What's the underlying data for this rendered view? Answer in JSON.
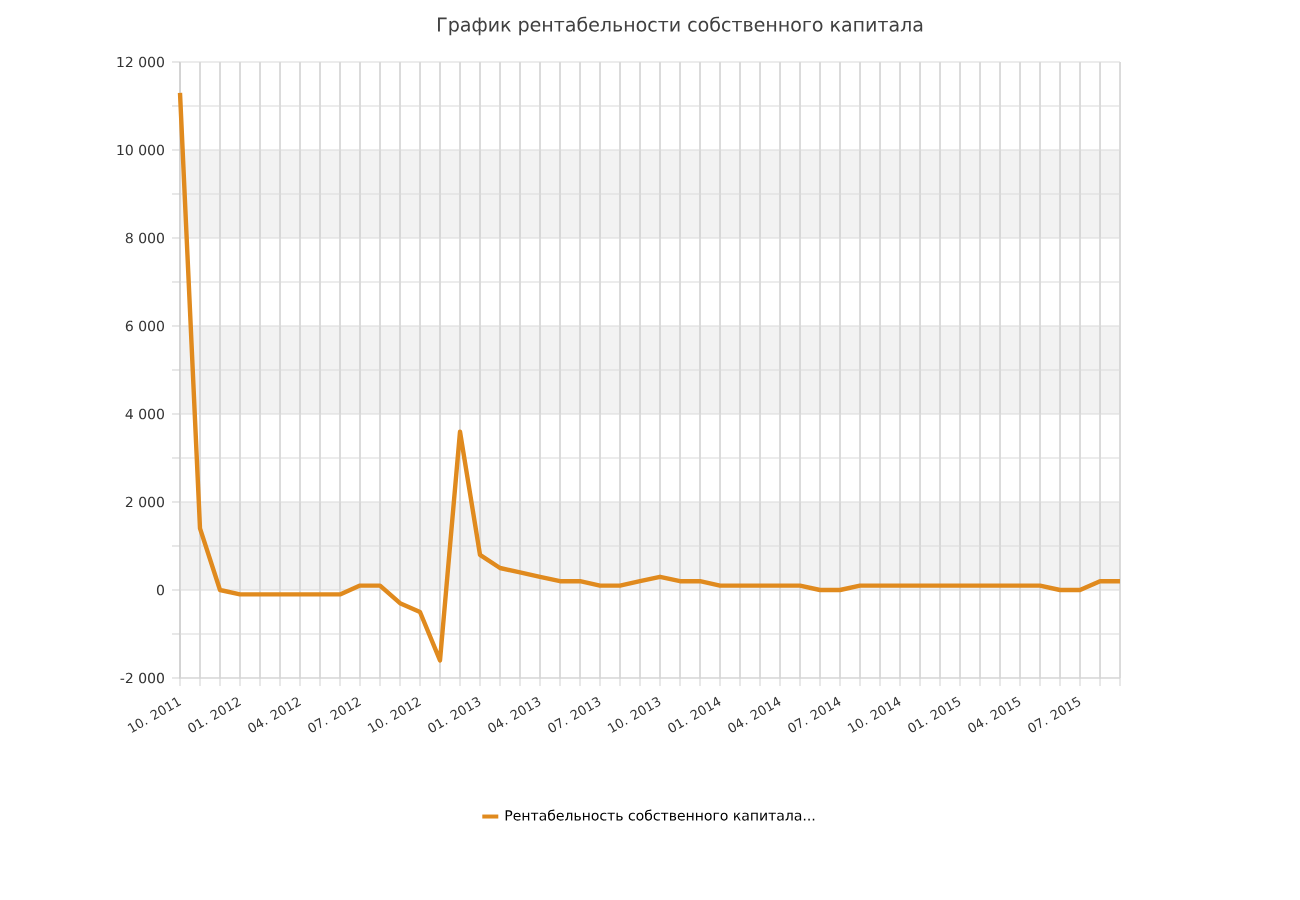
{
  "chart_data": {
    "type": "line",
    "title": "График рентабельности собственного капитала",
    "x": [
      "2011-10",
      "2011-11",
      "2011-12",
      "2012-01",
      "2012-02",
      "2012-03",
      "2012-04",
      "2012-05",
      "2012-06",
      "2012-07",
      "2012-08",
      "2012-09",
      "2012-10",
      "2012-11",
      "2012-12",
      "2013-01",
      "2013-02",
      "2013-03",
      "2013-04",
      "2013-05",
      "2013-06",
      "2013-07",
      "2013-08",
      "2013-09",
      "2013-10",
      "2013-11",
      "2013-12",
      "2014-01",
      "2014-02",
      "2014-03",
      "2014-04",
      "2014-05",
      "2014-06",
      "2014-07",
      "2014-08",
      "2014-09",
      "2014-10",
      "2014-11",
      "2014-12",
      "2015-01",
      "2015-02",
      "2015-03",
      "2015-04",
      "2015-05",
      "2015-06",
      "2015-07",
      "2015-08",
      "2015-09"
    ],
    "series": [
      {
        "name": "Рентабельность собственного капитала...",
        "color": "#e08a1e",
        "values": [
          11300,
          1400,
          0,
          -100,
          -100,
          -100,
          -100,
          -100,
          -100,
          100,
          100,
          -300,
          -500,
          -1600,
          3600,
          800,
          500,
          400,
          300,
          200,
          200,
          100,
          100,
          200,
          300,
          200,
          200,
          100,
          100,
          100,
          100,
          100,
          0,
          0,
          100,
          100,
          100,
          100,
          100,
          100,
          100,
          100,
          100,
          100,
          0,
          0,
          200,
          200
        ]
      }
    ],
    "xlim": [
      "2011-10",
      "2015-09"
    ],
    "xticks": [
      {
        "value": "2011-10",
        "label": "10. 2011"
      },
      {
        "value": "2011-11",
        "label": null
      },
      {
        "value": "2011-12",
        "label": null
      },
      {
        "value": "2012-01",
        "label": "01. 2012"
      },
      {
        "value": "2012-02",
        "label": null
      },
      {
        "value": "2012-03",
        "label": null
      },
      {
        "value": "2012-04",
        "label": "04. 2012"
      },
      {
        "value": "2012-05",
        "label": null
      },
      {
        "value": "2012-06",
        "label": null
      },
      {
        "value": "2012-07",
        "label": "07. 2012"
      },
      {
        "value": "2012-08",
        "label": null
      },
      {
        "value": "2012-09",
        "label": null
      },
      {
        "value": "2012-10",
        "label": "10. 2012"
      },
      {
        "value": "2012-11",
        "label": null
      },
      {
        "value": "2012-12",
        "label": null
      },
      {
        "value": "2013-01",
        "label": "01. 2013"
      },
      {
        "value": "2013-02",
        "label": null
      },
      {
        "value": "2013-03",
        "label": null
      },
      {
        "value": "2013-04",
        "label": "04. 2013"
      },
      {
        "value": "2013-05",
        "label": null
      },
      {
        "value": "2013-06",
        "label": null
      },
      {
        "value": "2013-07",
        "label": "07. 2013"
      },
      {
        "value": "2013-08",
        "label": null
      },
      {
        "value": "2013-09",
        "label": null
      },
      {
        "value": "2013-10",
        "label": "10. 2013"
      },
      {
        "value": "2013-11",
        "label": null
      },
      {
        "value": "2013-12",
        "label": null
      },
      {
        "value": "2014-01",
        "label": "01. 2014"
      },
      {
        "value": "2014-02",
        "label": null
      },
      {
        "value": "2014-03",
        "label": null
      },
      {
        "value": "2014-04",
        "label": "04. 2014"
      },
      {
        "value": "2014-05",
        "label": null
      },
      {
        "value": "2014-06",
        "label": null
      },
      {
        "value": "2014-07",
        "label": "07. 2014"
      },
      {
        "value": "2014-08",
        "label": null
      },
      {
        "value": "2014-09",
        "label": null
      },
      {
        "value": "2014-10",
        "label": "10. 2014"
      },
      {
        "value": "2014-11",
        "label": null
      },
      {
        "value": "2014-12",
        "label": null
      },
      {
        "value": "2015-01",
        "label": "01. 2015"
      },
      {
        "value": "2015-02",
        "label": null
      },
      {
        "value": "2015-03",
        "label": null
      },
      {
        "value": "2015-04",
        "label": "04. 2015"
      },
      {
        "value": "2015-05",
        "label": null
      },
      {
        "value": "2015-06",
        "label": null
      },
      {
        "value": "2015-07",
        "label": "07. 2015"
      },
      {
        "value": "2015-08",
        "label": null
      },
      {
        "value": "2015-09",
        "label": null
      }
    ],
    "ylim": [
      -2000,
      12000
    ],
    "yticks": [
      {
        "value": -2000,
        "label": "-2 000"
      },
      {
        "value": -1000,
        "label": null
      },
      0,
      {
        "value": 1000,
        "label": null
      },
      {
        "value": 2000,
        "label": "2 000"
      },
      {
        "value": 3000,
        "label": null
      },
      {
        "value": 4000,
        "label": "4 000"
      },
      {
        "value": 5000,
        "label": null
      },
      {
        "value": 6000,
        "label": "6 000"
      },
      {
        "value": 7000,
        "label": null
      },
      {
        "value": 8000,
        "label": "8 000"
      },
      {
        "value": 9000,
        "label": null
      },
      {
        "value": 10000,
        "label": "10 000"
      },
      {
        "value": 11000,
        "label": null
      },
      {
        "value": 12000,
        "label": "12 000"
      }
    ],
    "bands": [
      {
        "axis": "y",
        "from": 0,
        "to": 2000,
        "color": "#f2f2f2"
      },
      {
        "axis": "y",
        "from": 4000,
        "to": 6000,
        "color": "#f2f2f2"
      },
      {
        "axis": "y",
        "from": 8000,
        "to": 10000,
        "color": "#f2f2f2"
      }
    ],
    "grid": true,
    "legend": "bottom",
    "line_style": "solid",
    "marker": "none"
  }
}
